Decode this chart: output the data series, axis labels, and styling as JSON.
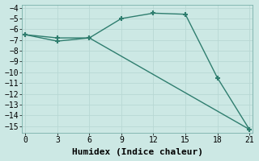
{
  "xlabel": "Humidex (Indice chaleur)",
  "line1_x": [
    0,
    3,
    6,
    9,
    12,
    15,
    18,
    21
  ],
  "line1_y": [
    -6.5,
    -6.8,
    -6.8,
    -5.0,
    -4.5,
    -4.6,
    -10.5,
    -15.3
  ],
  "line2_x": [
    0,
    3,
    6,
    21
  ],
  "line2_y": [
    -6.5,
    -7.1,
    -6.8,
    -15.3
  ],
  "color": "#2e7d6e",
  "bg_color": "#cce8e4",
  "grid_color": "#b8d8d4",
  "xlim": [
    -0.3,
    21.3
  ],
  "ylim": [
    -15.6,
    -3.7
  ],
  "xticks": [
    0,
    3,
    6,
    9,
    12,
    15,
    18,
    21
  ],
  "yticks": [
    -4,
    -5,
    -6,
    -7,
    -8,
    -9,
    -10,
    -11,
    -12,
    -13,
    -14,
    -15
  ],
  "marker": "+",
  "markersize": 5,
  "markeredgewidth": 1.5,
  "linewidth": 1.0,
  "font": "monospace",
  "tick_fontsize": 7,
  "xlabel_fontsize": 8
}
